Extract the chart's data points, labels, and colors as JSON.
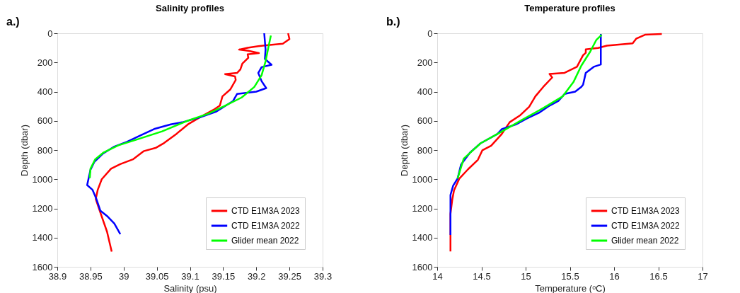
{
  "chart_data": [
    {
      "type": "line",
      "title": "Salinity profiles",
      "xlabel": "Salinity (psu)",
      "ylabel": "Depth (dbar)",
      "annotations": [
        "a.)"
      ],
      "xlim": [
        38.9,
        39.3
      ],
      "xticks": [
        38.9,
        38.95,
        39,
        39.05,
        39.1,
        39.15,
        39.2,
        39.25,
        39.3
      ],
      "ylim": [
        1600,
        0
      ],
      "yticks": [
        0,
        200,
        400,
        600,
        800,
        1000,
        1200,
        1400,
        1600
      ],
      "grid": false,
      "legend": "bottom right",
      "series": [
        {
          "name": "CTD E1M3A 2023",
          "color": "#ff0000",
          "x": [
            39.248,
            39.25,
            39.24,
            39.215,
            39.203,
            39.187,
            39.174,
            39.188,
            39.204,
            39.187,
            39.188,
            39.179,
            39.176,
            39.171,
            39.153,
            39.168,
            39.169,
            39.161,
            39.149,
            39.145,
            39.137,
            39.118,
            39.097,
            39.08,
            39.061,
            39.049,
            39.03,
            39.014,
            38.995,
            38.981,
            38.967,
            38.961,
            38.958,
            38.964,
            38.975,
            38.982
          ],
          "values": [
            0,
            40,
            72,
            83,
            88,
            99,
            112,
            120,
            136,
            144,
            168,
            208,
            248,
            272,
            280,
            296,
            320,
            384,
            432,
            496,
            520,
            568,
            624,
            688,
            752,
            784,
            808,
            864,
            896,
            928,
            1000,
            1072,
            1136,
            1216,
            1360,
            1496
          ]
        },
        {
          "name": "CTD E1M3A 2022",
          "color": "#0000ff",
          "x": [
            39.212,
            39.214,
            39.213,
            39.223,
            39.208,
            39.203,
            39.208,
            39.215,
            39.2,
            39.171,
            39.165,
            39.14,
            39.115,
            39.09,
            39.071,
            39.046,
            39.027,
            39.005,
            38.986,
            38.969,
            38.956,
            38.95,
            38.945,
            38.953,
            38.959,
            38.965,
            38.976,
            38.986,
            38.995
          ],
          "values": [
            0,
            112,
            176,
            216,
            232,
            272,
            328,
            376,
            400,
            416,
            464,
            536,
            576,
            608,
            624,
            656,
            696,
            744,
            776,
            824,
            880,
            936,
            1040,
            1072,
            1136,
            1216,
            1256,
            1304,
            1376
          ]
        },
        {
          "name": "Glider mean 2022",
          "color": "#00ff00",
          "x": [
            39.222,
            39.219,
            39.214,
            39.208,
            39.197,
            39.178,
            39.153,
            39.127,
            39.096,
            39.058,
            39.02,
            38.992,
            38.97,
            38.957,
            38.95,
            38.949
          ],
          "values": [
            16,
            80,
            192,
            288,
            368,
            440,
            496,
            552,
            600,
            672,
            728,
            768,
            816,
            864,
            928,
            992
          ]
        }
      ]
    },
    {
      "type": "line",
      "title": "Temperature profiles",
      "xlabel": "Temperature (ᵒC)",
      "ylabel": "Depth (dbar)",
      "annotations": [
        "b.)"
      ],
      "xlim": [
        14,
        17
      ],
      "xticks": [
        14,
        14.5,
        15,
        15.5,
        16,
        16.5,
        17
      ],
      "ylim": [
        1600,
        0
      ],
      "yticks": [
        0,
        200,
        400,
        600,
        800,
        1000,
        1200,
        1400,
        1600
      ],
      "grid": false,
      "legend": "bottom right",
      "series": [
        {
          "name": "CTD E1M3A 2023",
          "color": "#ff0000",
          "x": [
            16.54,
            16.35,
            16.25,
            16.21,
            15.92,
            15.82,
            15.68,
            15.68,
            15.65,
            15.58,
            15.44,
            15.27,
            15.3,
            15.2,
            15.11,
            15.04,
            14.94,
            14.82,
            14.73,
            14.61,
            14.51,
            14.46,
            14.35,
            14.25,
            14.19,
            14.17,
            14.15,
            14.15
          ],
          "values": [
            5,
            10,
            37,
            69,
            85,
            101,
            110,
            134,
            150,
            230,
            271,
            279,
            303,
            367,
            432,
            504,
            561,
            609,
            690,
            770,
            802,
            867,
            931,
            996,
            1076,
            1141,
            1237,
            1495
          ]
        },
        {
          "name": "CTD E1M3A 2022",
          "color": "#0000ff",
          "x": [
            15.85,
            15.85,
            15.85,
            15.77,
            15.68,
            15.65,
            15.63,
            15.56,
            15.44,
            15.37,
            15.27,
            15.15,
            15.01,
            14.89,
            14.73,
            14.68,
            14.49,
            14.37,
            14.27,
            14.23,
            14.18,
            14.15,
            14.15,
            14.15
          ],
          "values": [
            5,
            110,
            214,
            230,
            271,
            351,
            367,
            400,
            416,
            464,
            496,
            545,
            585,
            625,
            657,
            690,
            754,
            818,
            899,
            996,
            1044,
            1108,
            1237,
            1382
          ]
        },
        {
          "name": "Glider mean 2022",
          "color": "#00ff00",
          "x": [
            15.86,
            15.8,
            15.73,
            15.63,
            15.54,
            15.42,
            15.2,
            14.96,
            14.73,
            14.49,
            14.3,
            14.23
          ],
          "values": [
            10,
            45,
            126,
            222,
            335,
            432,
            512,
            593,
            673,
            754,
            859,
            996
          ]
        }
      ]
    }
  ]
}
